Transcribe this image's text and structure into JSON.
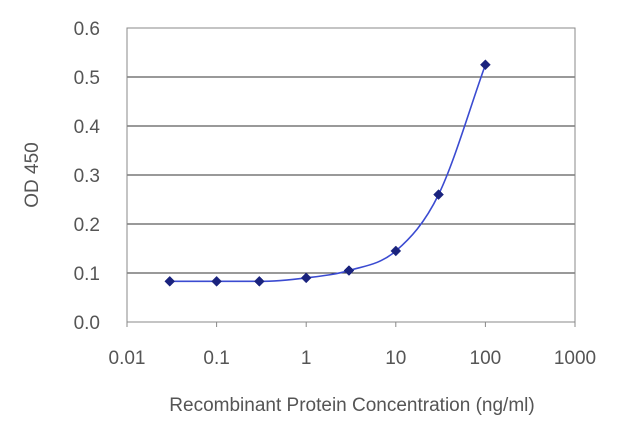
{
  "chart_data": {
    "type": "line",
    "xlabel": "Recombinant Protein Concentration (ng/ml)",
    "ylabel": "OD 450",
    "x_scale": "log",
    "xlim": [
      0.01,
      1000
    ],
    "ylim": [
      0.0,
      0.6
    ],
    "x_ticks": [
      "0.01",
      "0.1",
      "1",
      "10",
      "100",
      "1000"
    ],
    "y_ticks": [
      "0.0",
      "0.1",
      "0.2",
      "0.3",
      "0.4",
      "0.5",
      "0.6"
    ],
    "grid": "horizontal",
    "legend": "none",
    "series": [
      {
        "color": "#1a237e",
        "marker": "diamond",
        "x": [
          0.03,
          0.1,
          0.3,
          1,
          3,
          10,
          30,
          100
        ],
        "y": [
          0.083,
          0.083,
          0.083,
          0.09,
          0.105,
          0.145,
          0.26,
          0.525
        ]
      }
    ],
    "colors": {
      "series": "#1a237e",
      "curve": "#3b4bd1",
      "axis": "#888888",
      "grid": "#333333"
    }
  }
}
